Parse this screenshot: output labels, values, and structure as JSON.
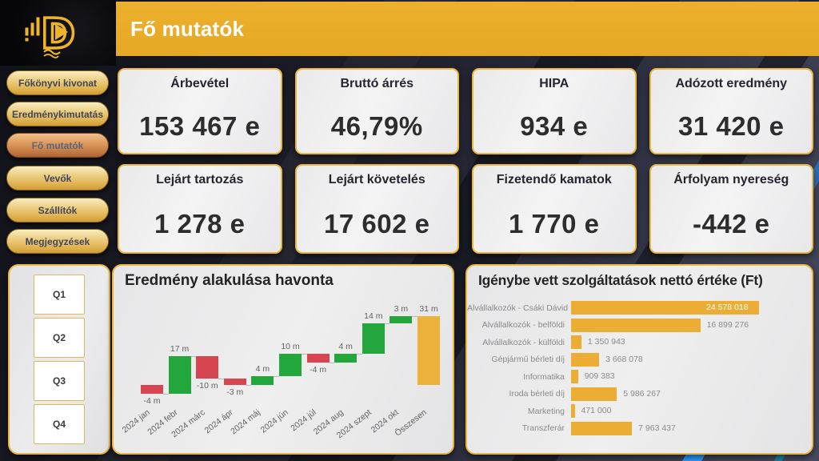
{
  "app": {
    "title": "Fő mutatók"
  },
  "colors": {
    "accent_gold": "#E9AC29",
    "card_border_gold": "#ECB53B",
    "bar_gold": "#EBAD33",
    "increase_green": "#23A63C",
    "decrease_red": "#D64550",
    "bg_dark": "#1B1C26",
    "bg_blue_sliver": "#2F9BFF"
  },
  "logo": {
    "icon": "d-play-logo-icon"
  },
  "sidebar": {
    "items": [
      {
        "label": "Főkönyvi kivonat",
        "active": false
      },
      {
        "label": "Eredménykimutatás",
        "active": false
      },
      {
        "label": "Fő mutatók",
        "active": true
      },
      {
        "label": "Vevők",
        "active": false
      },
      {
        "label": "Szállítók",
        "active": false
      },
      {
        "label": "Megjegyzések",
        "active": false
      }
    ],
    "quarters": [
      {
        "label": "Q1"
      },
      {
        "label": "Q2"
      },
      {
        "label": "Q3"
      },
      {
        "label": "Q4"
      }
    ]
  },
  "kpi": [
    {
      "title": "Árbevétel",
      "value": "153 467 e"
    },
    {
      "title": "Bruttó árrés",
      "value": "46,79%"
    },
    {
      "title": "HIPA",
      "value": "934 e"
    },
    {
      "title": "Adózott eredmény",
      "value": "31 420 e"
    },
    {
      "title": "Lejárt tartozás",
      "value": "1 278 e"
    },
    {
      "title": "Lejárt követelés",
      "value": "17 602 e"
    },
    {
      "title": "Fizetendő kamatok",
      "value": "1 770 e"
    },
    {
      "title": "Árfolyam nyereség",
      "value": "-442 e"
    }
  ],
  "chart_data": [
    {
      "type": "waterfall",
      "title": "Eredmény alakulása havonta",
      "categories": [
        "2024 jan",
        "2024 febr",
        "2024 márc",
        "2024 ápr",
        "2024 máj",
        "2024 jún",
        "2024 júl",
        "2024 aug",
        "2024 szept",
        "2024 okt",
        "Összesen"
      ],
      "values": [
        -4,
        17,
        -10,
        -3,
        4,
        10,
        -4,
        4,
        14,
        3,
        31
      ],
      "labels": [
        "-4 m",
        "17 m",
        "-10 m",
        "-3 m",
        "4 m",
        "10 m",
        "-4 m",
        "4 m",
        "14 m",
        "3 m",
        "31 m"
      ],
      "is_total": [
        false,
        false,
        false,
        false,
        false,
        false,
        false,
        false,
        false,
        false,
        true
      ],
      "unit": "m",
      "axis": {
        "gridlines": false,
        "y_min": -6,
        "y_max": 33
      },
      "colors": {
        "increase": "#23A63C",
        "decrease": "#D64550",
        "total": "#ECB23C",
        "connector": "#B9B9B9"
      }
    },
    {
      "type": "bar",
      "orientation": "horizontal",
      "title": "Igénybe vett szolgáltatások nettó értéke (Ft)",
      "categories": [
        "Alvállalkozók - Csáki Dávid",
        "Alvállalkozók - belföldi",
        "Alvállalkozók - külföldi",
        "Gépjármű bérleti díj",
        "Informatika",
        "Iroda bérleti díj",
        "Marketing",
        "Transzferár"
      ],
      "values": [
        24578018,
        16899276,
        1350943,
        3668078,
        909383,
        5986267,
        471000,
        7963437
      ],
      "value_labels": [
        "24 578 018",
        "16 899 276",
        "1 350 943",
        "3 668 078",
        "909 383",
        "5 986 267",
        "471 000",
        "7 963 437"
      ],
      "bar_color": "#EBAD33",
      "first_label_inside": true,
      "axis": {
        "gridlines": false,
        "x_min": 0,
        "x_max": 24578018
      }
    }
  ]
}
